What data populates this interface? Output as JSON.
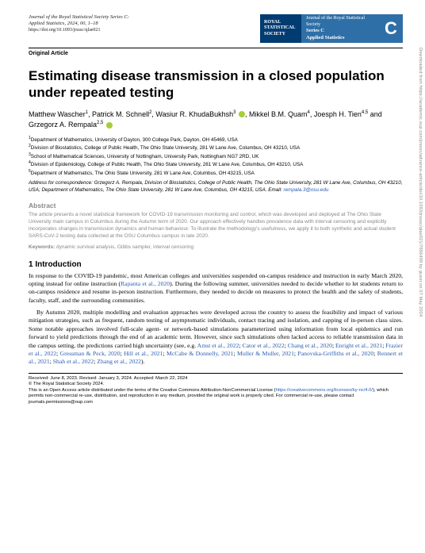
{
  "journal": {
    "name": "Journal of the Royal Statistical Society Series C:",
    "sub": "Applied Statistics",
    "year_vol": "2024, 00, 1–18",
    "doi": "https://doi.org/10.1093/jrsssc/qlae021"
  },
  "badge": {
    "royal": "ROYAL",
    "stat": "STATISTICAL",
    "soc": "SOCIETY",
    "jline": "Journal of the Royal Statistical Society",
    "series": "Series C",
    "applied": "Applied Statistics",
    "letter": "C"
  },
  "article_type": "Original Article",
  "title": "Estimating disease transmission in a closed population under repeated testing",
  "authors_html": "Matthew Wascher<sup>1</sup>, Patrick M. Schnell<sup>2</sup>, Wasiur R. KhudaBukhsh<sup>3</sup> <span class='orcid'></span>, Mikkel B.M. Quam<sup>4</sup>, Joesph H. Tien<sup>4,5</sup> and Grzegorz A. Rempala<sup>2,5</sup> <span class='orcid'></span>",
  "affiliations": [
    "<sup>1</sup>Department of Mathematics, University of Dayton, 300 College Park, Dayton, OH 45469, USA",
    "<sup>2</sup>Division of Biostatistics, College of Public Health, The Ohio State University, 281 W Lane Ave, Columbus, OH 43210, USA",
    "<sup>3</sup>School of Mathematical Sciences, University of Nottingham, University Park, Nottingham NG7 2RD, UK",
    "<sup>4</sup>Division of Epidemiology, College of Public Health, The Ohio State University, 281 W Lane Ave, Columbus, OH 43210, USA",
    "<sup>5</sup>Department of Mathematics, The Ohio State University, 281 W Lane Ave, Columbus, OH 43215, USA"
  ],
  "correspondence": "Address for correspondence: Grzegorz A. Rempala, Division of Biostatistics, College of Public Health, The Ohio State University, 281 W Lane Ave, Columbus, OH 43210, USA; Department of Mathematics, The Ohio State University, 281 W Lane Ave, Columbus, OH 43215, USA. Email: ",
  "correspondence_email": "rempala.3@osu.edu",
  "abstract_heading": "Abstract",
  "abstract": "The article presents a novel statistical framework for COVID-19 transmission monitoring and control, which was developed and deployed at The Ohio State University main campus in Columbus during the Autumn term of 2020. Our approach effectively handles prevalence data with interval censoring and explicitly incorporates changes in transmission dynamics and human behaviour. To illustrate the methodology's usefulness, we apply it to both synthetic and actual student SARS-CoV-2 testing data collected at the OSU Columbus campus in late 2020.",
  "keywords_label": "Keywords:",
  "keywords": "dynamic survival analysis, Gibbs sampler, interval censoring",
  "section1_heading": "1 Introduction",
  "para1": "In response to the COVID-19 pandemic, most American colleges and universities suspended on-campus residence and instruction in early March 2020, opting instead for online instruction (<span class='citation'>Rapanta et al., 2020</span>). During the following summer, universities needed to decide whether to let students return to on-campus residence and resume in-person instruction. Furthermore, they needed to decide on measures to protect the health and the safety of students, faculty, staff, and the surrounding communities.",
  "para2": "By Autumn 2020, multiple modelling and evaluation approaches were developed across the country to assess the feasibility and impact of various mitigation strategies, such as frequent, random testing of asymptomatic individuals, contact tracing and isolation, and capping of in-person class sizes. Some notable approaches involved full-scale agent- or network-based simulations parameterized using information from local epidemics and run forward to yield predictions through the end of an academic term. However, since such simulations often lacked access to reliable transmission data in the campus setting, the predictions carried high uncertainty (see, e.g. <span class='citation'>Amst et al., 2022</span>; <span class='citation'>Cator et al., 2022</span>; <span class='citation'>Chang et al., 2020</span>; <span class='citation'>Enright et al., 2021</span>; <span class='citation'>Frazier et al., 2022</span>; <span class='citation'>Gressman & Peck, 2020</span>; <span class='citation'>Hill et al., 2021</span>; <span class='citation'>McCabe & Donnelly, 2021</span>; <span class='citation'>Muller & Muller, 2021</span>; <span class='citation'>Panovska-Griffiths et al., 2020</span>; <span class='citation'>Rennert et al., 2021</span>; <span class='citation'>Shah et al., 2022</span>; <span class='citation'>Zhang et al., 2022</span>).",
  "footer": {
    "received": "Received: June 8, 2023. Revised: January 3, 2024. Accepted: March 22, 2024",
    "copyright": "© The Royal Statistical Society 2024.",
    "license1": "This is an Open Access article distributed under the terms of the Creative Commons Attribution-NonCommercial License",
    "license_url": "https://creativecommons.org/licenses/by-nc/4.0/",
    "license2": ", which permits non-commercial re-use, distribution, and reproduction in any medium, provided the original work is properly cited. For commercial re-use, please contact journals.permissions@oup.com"
  },
  "side_text": "Downloaded from https://academic.oup.com/jrsssc/advance-article/doi/10.1093/jrsssc/qlae021/7666499 by guest on 07 May 2024"
}
